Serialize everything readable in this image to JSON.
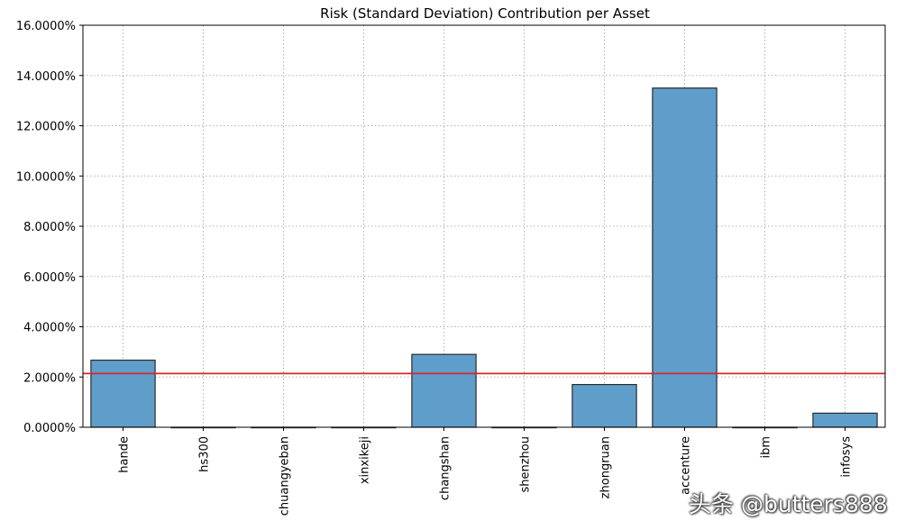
{
  "watermark": "头条 @butters888",
  "chart_data": {
    "type": "bar",
    "title": "Risk (Standard Deviation) Contribution per Asset",
    "xlabel": "",
    "ylabel": "",
    "categories": [
      "hande",
      "hs300",
      "chuangyeban",
      "xinxikeji",
      "changshan",
      "shenzhou",
      "zhongruan",
      "accenture",
      "ibm",
      "infosys"
    ],
    "values": [
      2.67,
      0.0,
      0.0,
      0.0,
      2.9,
      0.0,
      1.7,
      13.5,
      0.0,
      0.56
    ],
    "value_unit": "%",
    "ylim": [
      0,
      16
    ],
    "yticks": [
      "0.0000%",
      "2.0000%",
      "4.0000%",
      "6.0000%",
      "8.0000%",
      "10.0000%",
      "12.0000%",
      "14.0000%",
      "16.0000%"
    ],
    "reference_line": {
      "value": 2.14,
      "color": "#d62728"
    },
    "grid": true,
    "bar_color": "#5f9ecb",
    "bar_edge_color": "#2b2b2b"
  }
}
